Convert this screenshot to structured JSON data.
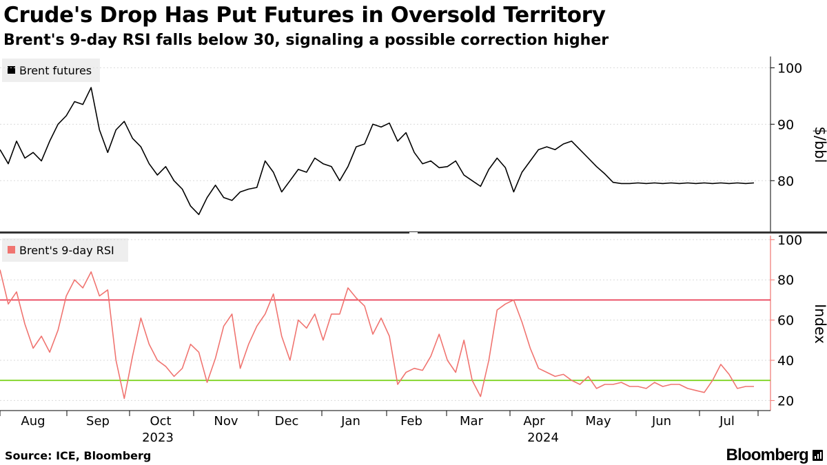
{
  "title": "Crude's Drop Has Put Futures in Oversold Territory",
  "subtitle": "Brent's 9-day RSI falls below 30, signaling a possible correction higher",
  "source": "Source: ICE, Bloomberg",
  "brand": "Bloomberg",
  "colors": {
    "price_line": "#000000",
    "rsi_line": "#f07470",
    "overbought_line": "#e8304a",
    "oversold_line": "#7ed321",
    "axis_rsi": "#f07470",
    "legend_bg": "#eeeeee",
    "divider": "#333333",
    "gridline": "#d9d9d9"
  },
  "chart_data": [
    {
      "type": "line",
      "panel": "top",
      "legend": "Brent futures",
      "ylabel": "$/bbl",
      "ylim": [
        71,
        102
      ],
      "yticks": [
        80,
        90,
        100
      ],
      "x_range": [
        0,
        366
      ],
      "series": [
        {
          "name": "Brent futures",
          "x": [
            0,
            4,
            8,
            12,
            16,
            20,
            24,
            28,
            32,
            36,
            40,
            44,
            48,
            52,
            56,
            60,
            64,
            68,
            72,
            76,
            80,
            84,
            88,
            92,
            96,
            100,
            104,
            108,
            112,
            116,
            120,
            124,
            128,
            132,
            136,
            140,
            144,
            148,
            152,
            156,
            160,
            164,
            168,
            172,
            176,
            180,
            184,
            188,
            192,
            196,
            200,
            204,
            208,
            212,
            216,
            220,
            224,
            228,
            232,
            236,
            240,
            244,
            248,
            252,
            256,
            260,
            264,
            268,
            272,
            276,
            280,
            284,
            288,
            292,
            296,
            300,
            304,
            308,
            312,
            316,
            320,
            324,
            328,
            332,
            336,
            340,
            344,
            348,
            352,
            356,
            360,
            364
          ],
          "values": [
            85.5,
            83,
            87,
            84,
            85,
            83.5,
            87,
            90,
            91.5,
            94,
            93.5,
            96.5,
            89,
            85,
            89,
            90.5,
            87.5,
            86,
            83,
            81,
            82.5,
            80,
            78.5,
            75.5,
            74,
            77,
            79.2,
            77,
            76.5,
            78,
            78.5,
            78.8,
            83.5,
            81.5,
            78,
            80,
            82,
            81.5,
            84,
            83,
            82.5,
            80,
            82.5,
            86,
            86.5,
            90,
            89.5,
            90.2,
            87,
            88.5,
            85,
            83,
            83.5,
            82.3,
            82.5,
            83.5,
            81,
            80,
            79,
            82,
            84,
            82.3,
            78,
            81.5,
            83.5,
            85.5,
            86,
            85.5,
            86.5,
            87,
            85.5,
            84,
            82.5,
            81.2,
            79.7,
            79.5,
            79.5,
            79.6,
            79.5,
            79.6,
            79.5,
            79.6,
            79.5,
            79.6,
            79.5,
            79.6,
            79.5,
            79.6,
            79.5,
            79.6,
            79.5,
            79.6
          ]
        }
      ]
    },
    {
      "type": "line",
      "panel": "bottom",
      "legend": "Brent's 9-day RSI",
      "ylabel": "Index",
      "ylim": [
        15,
        102
      ],
      "yticks": [
        20,
        40,
        60,
        80,
        100
      ],
      "x_range": [
        0,
        366
      ],
      "reference_lines": [
        {
          "name": "overbought",
          "value": 70
        },
        {
          "name": "oversold",
          "value": 30
        }
      ],
      "series": [
        {
          "name": "Brent's 9-day RSI",
          "x": [
            0,
            4,
            8,
            12,
            16,
            20,
            24,
            28,
            32,
            36,
            40,
            44,
            48,
            52,
            56,
            60,
            64,
            68,
            72,
            76,
            80,
            84,
            88,
            92,
            96,
            100,
            104,
            108,
            112,
            116,
            120,
            124,
            128,
            132,
            136,
            140,
            144,
            148,
            152,
            156,
            160,
            164,
            168,
            172,
            176,
            180,
            184,
            188,
            192,
            196,
            200,
            204,
            208,
            212,
            216,
            220,
            224,
            228,
            232,
            236,
            240,
            244,
            248,
            252,
            256,
            260,
            264,
            268,
            272,
            276,
            280,
            284,
            288,
            292,
            296,
            300,
            304,
            308,
            312,
            316,
            320,
            324,
            328,
            332,
            336,
            340,
            344,
            348,
            352,
            356,
            360,
            364
          ],
          "values": [
            85,
            68,
            74,
            58,
            46,
            52,
            44,
            55,
            72,
            80,
            76,
            84,
            72,
            75,
            40,
            21,
            42,
            61,
            48,
            40,
            37,
            32,
            36,
            48,
            44,
            29,
            41,
            57,
            63,
            36,
            48,
            57,
            63,
            73,
            52,
            40,
            60,
            56,
            63,
            50,
            63,
            63,
            76,
            71,
            67,
            53,
            61,
            52,
            28,
            34,
            36,
            35,
            42,
            53,
            40,
            34,
            50,
            30,
            22,
            40,
            65,
            68,
            70,
            59,
            46,
            36,
            34,
            32,
            33,
            30,
            28,
            32,
            26,
            28,
            28,
            29,
            27,
            27,
            26,
            29,
            27,
            28,
            28,
            26,
            25,
            24,
            30,
            38,
            33,
            26,
            27,
            27
          ]
        }
      ]
    }
  ],
  "x_axis": {
    "month_labels": [
      "Aug",
      "Sep",
      "Oct",
      "Nov",
      "Dec",
      "Jan",
      "Feb",
      "Mar",
      "Apr",
      "May",
      "Jun",
      "Jul"
    ],
    "year_labels": [
      "2023",
      "2024"
    ]
  }
}
